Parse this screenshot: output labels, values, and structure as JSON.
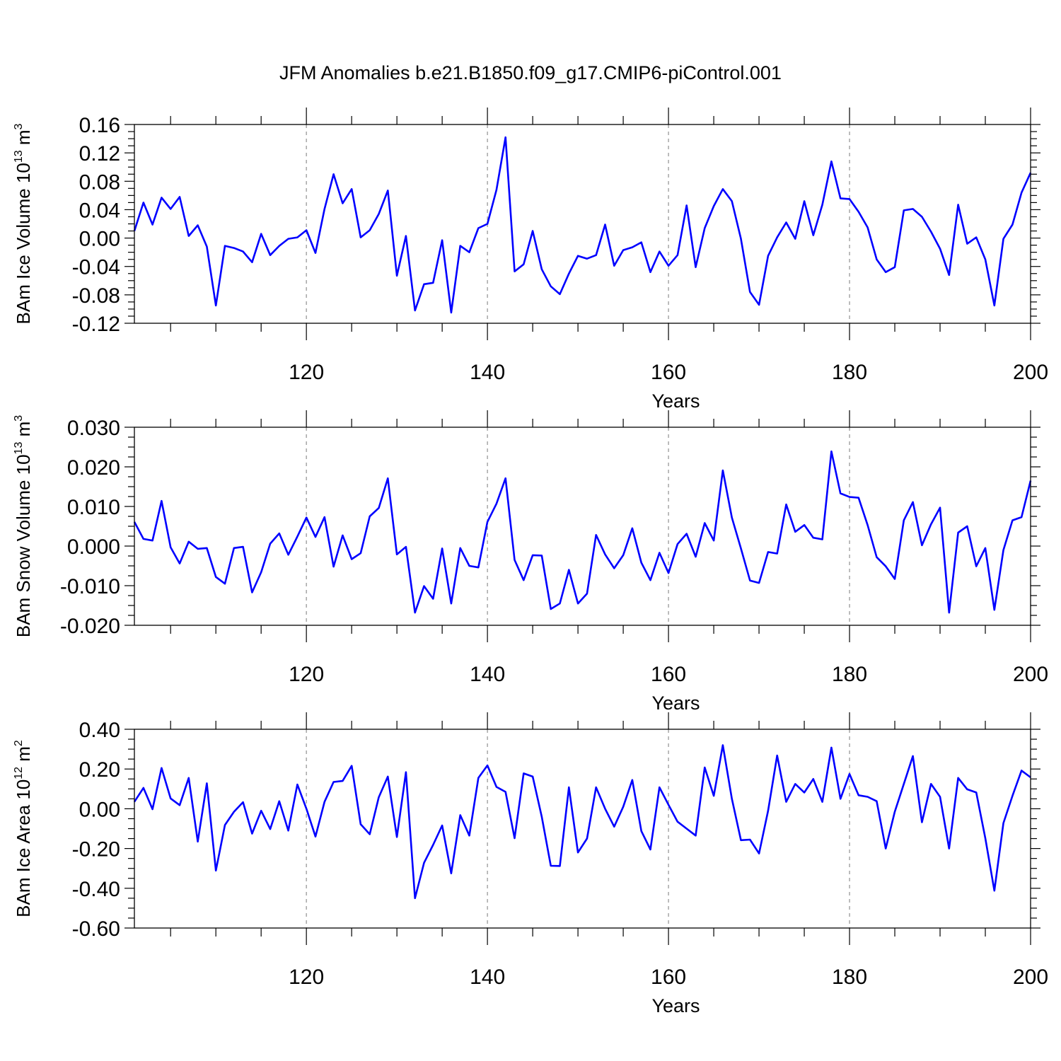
{
  "title": "JFM Anomalies b.e21.B1850.f09_g17.CMIP6-piControl.001",
  "chart_data": [
    {
      "type": "line",
      "ylabel": {
        "text": "BAm Ice Volume 10",
        "exp": "13",
        "unit": " m",
        "unit_exp": "3"
      },
      "xlabel": "Years",
      "xlim": [
        101,
        200
      ],
      "ylim": [
        -0.12,
        0.16
      ],
      "xticks": [
        120,
        140,
        160,
        180,
        200
      ],
      "xtick_labels": [
        "120",
        "140",
        "160",
        "180",
        "200"
      ],
      "yticks": [
        0.16,
        0.12,
        0.08,
        0.04,
        0.0,
        -0.04,
        -0.08,
        -0.12
      ],
      "ytick_labels": [
        "0.16",
        "0.12",
        "0.08",
        "0.04",
        "0.00",
        "-0.04",
        "-0.08",
        "-0.12"
      ],
      "grid": "vertical dashed at x major ticks",
      "series": [
        {
          "color": "#0000ff",
          "x_start": 101,
          "values": [
            0.01,
            0.05,
            0.019,
            0.057,
            0.041,
            0.058,
            0.003,
            0.018,
            -0.012,
            -0.095,
            -0.011,
            -0.014,
            -0.019,
            -0.034,
            0.006,
            -0.024,
            -0.011,
            -0.001,
            0.001,
            0.011,
            -0.021,
            0.041,
            0.09,
            0.049,
            0.069,
            0.001,
            0.011,
            0.034,
            0.067,
            -0.053,
            0.003,
            -0.102,
            -0.065,
            -0.063,
            -0.003,
            -0.105,
            -0.011,
            -0.02,
            0.014,
            0.02,
            0.068,
            0.142,
            -0.047,
            -0.037,
            0.01,
            -0.044,
            -0.068,
            -0.079,
            -0.05,
            -0.025,
            -0.029,
            -0.024,
            0.019,
            -0.039,
            -0.017,
            -0.013,
            -0.006,
            -0.048,
            -0.019,
            -0.039,
            -0.024,
            0.046,
            -0.041,
            0.014,
            0.045,
            0.069,
            0.052,
            -0.001,
            -0.076,
            -0.094,
            -0.025,
            0.001,
            0.022,
            -0.001,
            0.052,
            0.004,
            0.047,
            0.108,
            0.056,
            0.055,
            0.037,
            0.015,
            -0.03,
            -0.048,
            -0.041,
            0.039,
            0.041,
            0.03,
            0.009,
            -0.015,
            -0.052,
            0.047,
            -0.008,
            0.001,
            -0.03,
            -0.095,
            -0.001,
            0.019,
            0.064,
            0.092
          ]
        }
      ]
    },
    {
      "type": "line",
      "ylabel": {
        "text": "BAm Snow Volume 10",
        "exp": "13",
        "unit": " m",
        "unit_exp": "3"
      },
      "xlabel": "Years",
      "xlim": [
        101,
        200
      ],
      "ylim": [
        -0.02,
        0.03
      ],
      "xticks": [
        120,
        140,
        160,
        180,
        200
      ],
      "xtick_labels": [
        "120",
        "140",
        "160",
        "180",
        "200"
      ],
      "yticks": [
        0.03,
        0.02,
        0.01,
        0.0,
        -0.01,
        -0.02
      ],
      "ytick_labels": [
        "0.030",
        "0.020",
        "0.010",
        "0.000",
        "-0.010",
        "-0.020"
      ],
      "grid": "vertical dashed at x major ticks",
      "series": [
        {
          "color": "#0000ff",
          "x_start": 101,
          "values": [
            0.0061,
            0.0018,
            0.0014,
            0.0114,
            -0.0003,
            -0.0044,
            0.0011,
            -0.0007,
            -0.0005,
            -0.0078,
            -0.0095,
            -0.0005,
            -0.0002,
            -0.0117,
            -0.0066,
            0.0006,
            0.0032,
            -0.0022,
            0.0024,
            0.0072,
            0.0023,
            0.0073,
            -0.0052,
            0.0027,
            -0.0033,
            -0.0018,
            0.0075,
            0.0096,
            0.0171,
            -0.0021,
            -0.0002,
            -0.0168,
            -0.0101,
            -0.0133,
            -0.0006,
            -0.0145,
            -0.0005,
            -0.005,
            -0.0054,
            0.0061,
            0.0107,
            0.0171,
            -0.0035,
            -0.0086,
            -0.0023,
            -0.0024,
            -0.0159,
            -0.0145,
            -0.006,
            -0.0145,
            -0.012,
            0.0028,
            -0.0021,
            -0.0056,
            -0.0023,
            0.0045,
            -0.0042,
            -0.0086,
            -0.0017,
            -0.0068,
            0.0005,
            0.0031,
            -0.0027,
            0.0058,
            0.0014,
            0.0191,
            0.0072,
            -0.0006,
            -0.0087,
            -0.0093,
            -0.0015,
            -0.0019,
            0.0105,
            0.0036,
            0.0053,
            0.0021,
            0.0017,
            0.0239,
            0.0133,
            0.0124,
            0.0122,
            0.0053,
            -0.0028,
            -0.0051,
            -0.0083,
            0.0065,
            0.0111,
            0.0002,
            0.0055,
            0.0097,
            -0.0168,
            0.0034,
            0.005,
            -0.0051,
            -0.0005,
            -0.0161,
            -0.001,
            0.0065,
            0.0073,
            0.0165
          ]
        }
      ]
    },
    {
      "type": "line",
      "ylabel": {
        "text": "BAm Ice Area 10",
        "exp": "12",
        "unit": " m",
        "unit_exp": "2"
      },
      "xlabel": "Years",
      "xlim": [
        101,
        200
      ],
      "ylim": [
        -0.6,
        0.4
      ],
      "xticks": [
        120,
        140,
        160,
        180,
        200
      ],
      "xtick_labels": [
        "120",
        "140",
        "160",
        "180",
        "200"
      ],
      "yticks": [
        0.4,
        0.2,
        0.0,
        -0.2,
        -0.4,
        -0.6
      ],
      "ytick_labels": [
        "0.40",
        "0.20",
        "0.00",
        "-0.20",
        "-0.40",
        "-0.60"
      ],
      "grid": "vertical dashed at x major ticks",
      "series": [
        {
          "color": "#0000ff",
          "x_start": 101,
          "values": [
            0.035,
            0.105,
            -0.002,
            0.205,
            0.052,
            0.018,
            0.155,
            -0.165,
            0.128,
            -0.311,
            -0.082,
            -0.015,
            0.033,
            -0.125,
            -0.01,
            -0.102,
            0.038,
            -0.11,
            0.122,
            0.0,
            -0.14,
            0.035,
            0.135,
            0.14,
            0.216,
            -0.078,
            -0.128,
            0.058,
            0.162,
            -0.142,
            0.184,
            -0.45,
            -0.272,
            -0.182,
            -0.084,
            -0.325,
            -0.032,
            -0.135,
            0.155,
            0.218,
            0.11,
            0.085,
            -0.148,
            0.178,
            0.162,
            -0.04,
            -0.287,
            -0.288,
            0.108,
            -0.22,
            -0.15,
            0.108,
            0.0,
            -0.09,
            0.01,
            0.145,
            -0.112,
            -0.205,
            0.108,
            0.02,
            -0.065,
            -0.1,
            -0.135,
            0.208,
            0.065,
            0.32,
            0.05,
            -0.158,
            -0.155,
            -0.225,
            -0.01,
            0.268,
            0.035,
            0.125,
            0.082,
            0.15,
            0.035,
            0.308,
            0.05,
            0.175,
            0.068,
            0.06,
            0.038,
            -0.2,
            -0.015,
            0.125,
            0.265,
            -0.068,
            0.125,
            0.06,
            -0.2,
            0.155,
            0.098,
            0.082,
            -0.148,
            -0.412,
            -0.072,
            0.065,
            0.192,
            0.158
          ]
        }
      ]
    }
  ]
}
